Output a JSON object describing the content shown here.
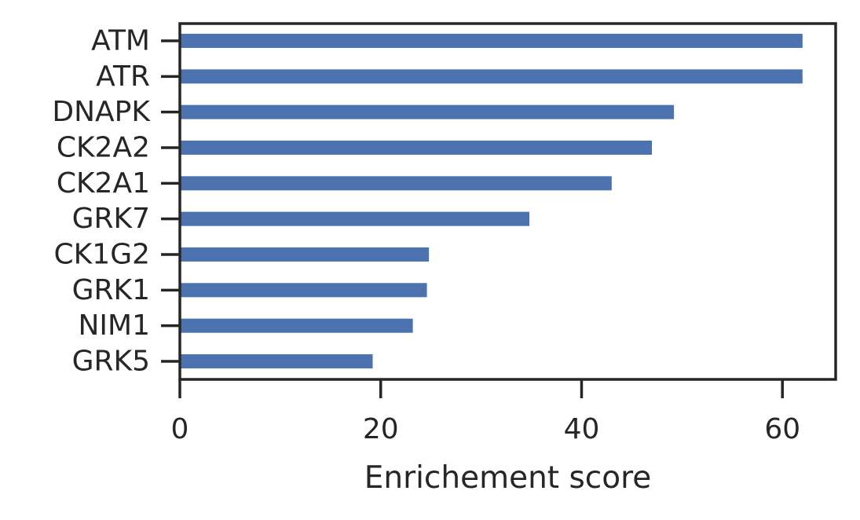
{
  "chart_data": {
    "type": "bar",
    "orientation": "horizontal",
    "categories": [
      "ATM",
      "ATR",
      "DNAPK",
      "CK2A2",
      "CK2A1",
      "GRK7",
      "CK1G2",
      "GRK1",
      "NIM1",
      "GRK5"
    ],
    "values": [
      62.0,
      62.0,
      49.2,
      47.0,
      43.0,
      34.8,
      24.8,
      24.6,
      23.2,
      19.2
    ],
    "title": "",
    "xlabel": "Enrichement score",
    "ylabel": "",
    "xlim": [
      0,
      65.3
    ],
    "xticks": [
      0,
      20,
      40,
      60
    ],
    "xtick_labels": [
      "0",
      "20",
      "40",
      "60"
    ],
    "grid": false,
    "legend": "none",
    "bar_color": "#4c72b0"
  }
}
